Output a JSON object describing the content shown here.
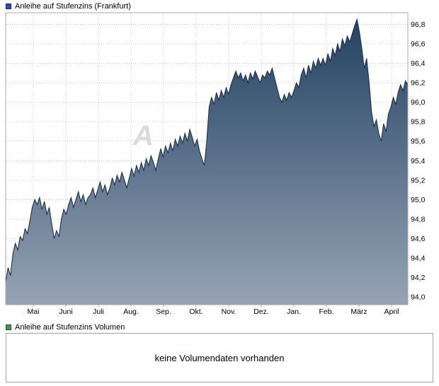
{
  "chart": {
    "title": "Anleihe auf Stufenzins (Frankfurt)",
    "watermark": "A",
    "legend_color": "#2055a5"
  },
  "volume": {
    "title": "Anleihe auf Stufenzins Volumen",
    "message": "keine Volumendaten vorhanden",
    "legend_color": "#3b9e3c"
  },
  "chart_data": {
    "type": "area",
    "title": "Anleihe auf Stufenzins (Frankfurt)",
    "xlabel": "",
    "ylabel": "",
    "legend_position": "top-left",
    "grid": true,
    "x_tick_labels": [
      "Mai",
      "Juni",
      "Juli",
      "Aug.",
      "Sep.",
      "Okt.",
      "Nov.",
      "Dez.",
      "Jan.",
      "Feb.",
      "März",
      "April"
    ],
    "y_tick_values": [
      94.0,
      94.2,
      94.4,
      94.6,
      94.8,
      95.0,
      95.2,
      95.4,
      95.6,
      95.8,
      96.0,
      96.2,
      96.4,
      96.6,
      96.8
    ],
    "y_tick_labels": [
      "94,0",
      "94,2",
      "94,4",
      "94,6",
      "94,8",
      "95,0",
      "95,2",
      "95,4",
      "95,6",
      "95,8",
      "96,0",
      "96,2",
      "96,4",
      "96,6",
      "96,8"
    ],
    "ylim": [
      93.92,
      96.92
    ],
    "values": [
      94.15,
      94.3,
      94.22,
      94.45,
      94.55,
      94.48,
      94.62,
      94.58,
      94.7,
      94.65,
      94.78,
      94.92,
      95.0,
      94.95,
      95.02,
      94.9,
      94.98,
      94.85,
      94.92,
      94.75,
      94.6,
      94.68,
      94.62,
      94.8,
      94.9,
      94.85,
      94.95,
      95.02,
      94.92,
      95.0,
      95.08,
      94.98,
      95.05,
      94.95,
      95.02,
      95.05,
      95.12,
      95.02,
      95.1,
      95.18,
      95.08,
      95.15,
      95.05,
      95.12,
      95.22,
      95.15,
      95.25,
      95.18,
      95.28,
      95.2,
      95.12,
      95.22,
      95.32,
      95.24,
      95.35,
      95.28,
      95.38,
      95.3,
      95.42,
      95.35,
      95.45,
      95.38,
      95.3,
      95.42,
      95.52,
      95.44,
      95.55,
      95.48,
      95.58,
      95.5,
      95.62,
      95.55,
      95.65,
      95.58,
      95.68,
      95.6,
      95.72,
      95.64,
      95.55,
      95.62,
      95.5,
      95.42,
      95.35,
      95.6,
      95.95,
      96.05,
      95.98,
      96.1,
      96.02,
      96.12,
      96.05,
      96.15,
      96.08,
      96.18,
      96.25,
      96.32,
      96.25,
      96.3,
      96.22,
      96.28,
      96.2,
      96.3,
      96.24,
      96.32,
      96.26,
      96.2,
      96.28,
      96.25,
      96.32,
      96.28,
      96.35,
      96.25,
      96.15,
      96.05,
      96.0,
      96.08,
      96.02,
      96.1,
      96.05,
      96.12,
      96.2,
      96.15,
      96.28,
      96.35,
      96.25,
      96.38,
      96.3,
      96.42,
      96.35,
      96.45,
      96.38,
      96.45,
      96.38,
      96.5,
      96.42,
      96.55,
      96.48,
      96.6,
      96.52,
      96.65,
      96.58,
      96.68,
      96.62,
      96.7,
      96.78,
      96.85,
      96.72,
      96.55,
      96.35,
      96.45,
      96.2,
      95.9,
      95.75,
      95.82,
      95.68,
      95.6,
      95.78,
      95.7,
      95.88,
      95.95,
      96.05,
      95.98,
      96.1,
      96.18,
      96.12,
      96.22,
      96.18
    ],
    "colors": {
      "line": "#1c3048",
      "fill_top": "#214061",
      "fill_bottom": "#96a3b4",
      "grid": "#c9c9c9",
      "border": "#a8a8a8",
      "text": "#000000"
    }
  }
}
